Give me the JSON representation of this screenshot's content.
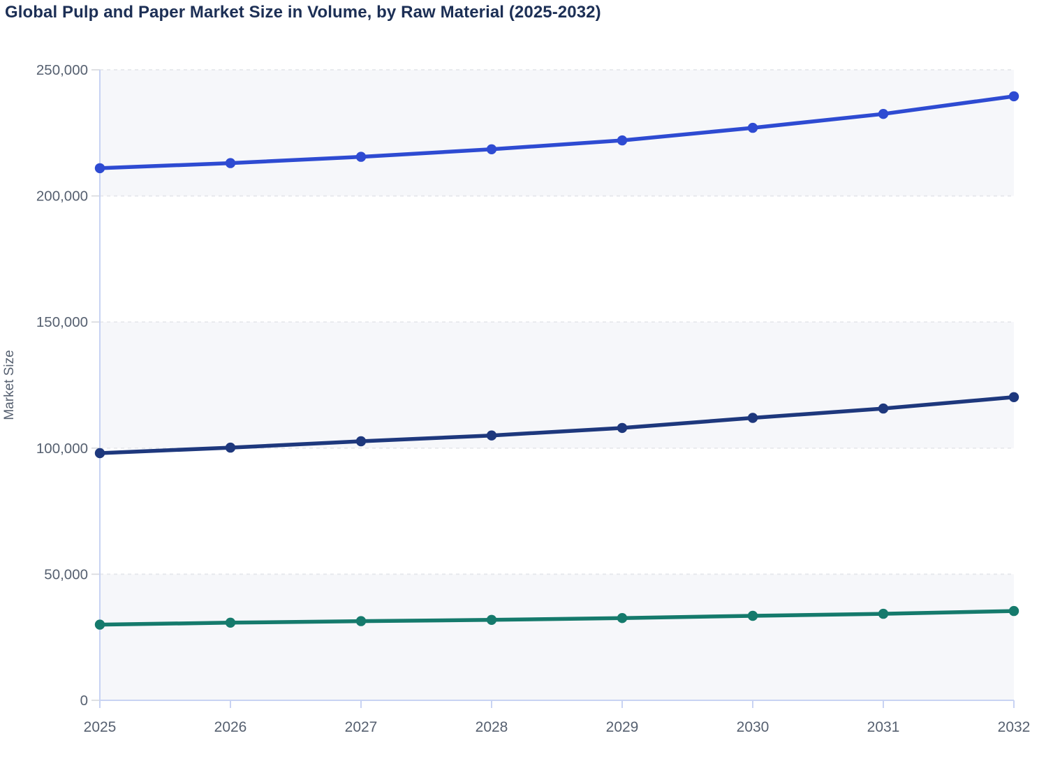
{
  "title": "Global Pulp and Paper Market Size in Volume, by Raw Material (2025-2032)",
  "chart_data": {
    "type": "line",
    "x": [
      "2025",
      "2026",
      "2027",
      "2028",
      "2029",
      "2030",
      "2031",
      "2032"
    ],
    "series": [
      {
        "name": "blue",
        "color": "#2E4BD2",
        "values": [
          211000,
          213000,
          215500,
          218500,
          222000,
          227000,
          232500,
          239500
        ]
      },
      {
        "name": "navy",
        "color": "#1E387D",
        "values": [
          98000,
          100200,
          102700,
          105000,
          108000,
          112000,
          115700,
          120200
        ]
      },
      {
        "name": "teal",
        "color": "#157A6C",
        "values": [
          30000,
          30800,
          31400,
          31900,
          32600,
          33500,
          34300,
          35400
        ]
      }
    ],
    "ylabel": "Market Size",
    "xlabel": "",
    "ylim": [
      0,
      250000
    ],
    "yticks": [
      0,
      50000,
      100000,
      150000,
      200000,
      250000
    ],
    "ytick_labels": [
      "0",
      "50,000",
      "100,000",
      "150,000",
      "200,000",
      "250,000"
    ],
    "grid": "horizontal-dashed",
    "legend": "none",
    "marker": "circle"
  },
  "colors": {
    "title": "#1C2F55",
    "axis_text": "#566070",
    "axis_line": "#C8D3F3",
    "tick": "#D8DADE",
    "gridline": "#E5E7EB",
    "band": "#F6F7FA",
    "background": "#FFFFFF"
  }
}
